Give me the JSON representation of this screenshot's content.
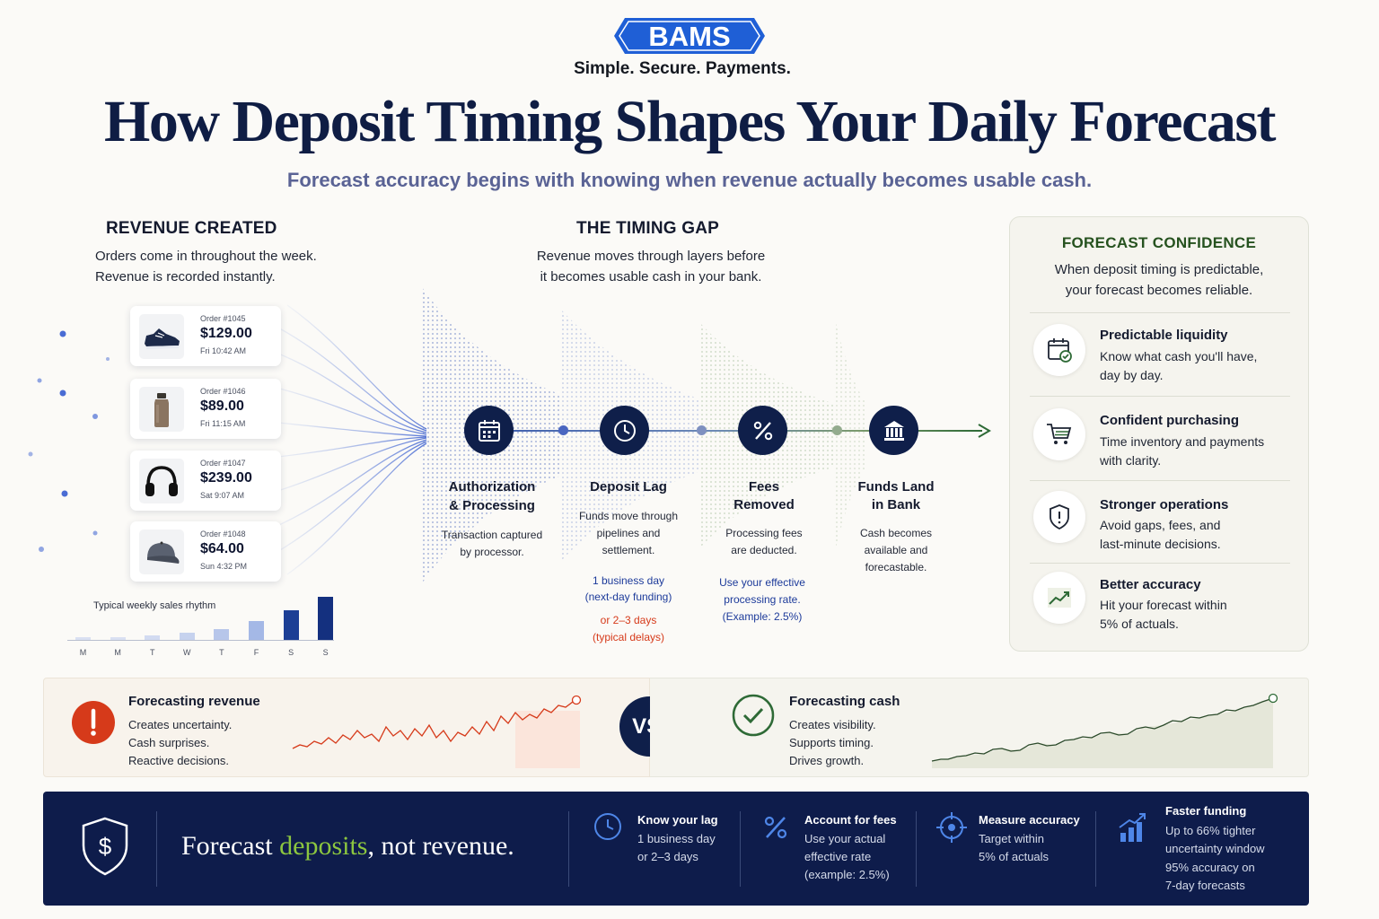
{
  "brand": {
    "logo_text": "BAMS",
    "tagline": "Simple. Secure. Payments.",
    "colors": {
      "navy": "#0f1f4a",
      "blue": "#1f5fd6",
      "green": "#26521f",
      "accent_green": "#8cc63f",
      "red": "#d63a1a"
    }
  },
  "header": {
    "title": "How Deposit Timing Shapes Your Daily Forecast",
    "subtitle": "Forecast accuracy begins with knowing when revenue actually becomes usable cash."
  },
  "revenue": {
    "heading": "REVENUE CREATED",
    "desc_1": "Orders come in throughout the week.",
    "desc_2": "Revenue is recorded instantly.",
    "orders": [
      {
        "id": "Order #1045",
        "amount": "$129.00",
        "time": "Fri 10:42 AM",
        "icon": "sneaker-icon"
      },
      {
        "id": "Order #1046",
        "amount": "$89.00",
        "time": "Fri 11:15 AM",
        "icon": "bottle-icon"
      },
      {
        "id": "Order #1047",
        "amount": "$239.00",
        "time": "Sat 9:07 AM",
        "icon": "headphones-icon"
      },
      {
        "id": "Order #1048",
        "amount": "$64.00",
        "time": "Sun 4:32 PM",
        "icon": "cap-icon"
      }
    ],
    "weekly_chart": {
      "title": "Typical weekly sales rhythm",
      "days": [
        "M",
        "M",
        "T",
        "W",
        "T",
        "F",
        "S",
        "S"
      ],
      "relative_levels": [
        0.08,
        0.09,
        0.13,
        0.18,
        0.27,
        0.44,
        0.7,
        1.0
      ]
    }
  },
  "timing": {
    "heading": "THE TIMING GAP",
    "desc_1": "Revenue moves through layers before",
    "desc_2": "it becomes usable cash in your bank.",
    "steps": [
      {
        "title_1": "Authorization",
        "title_2": "& Processing",
        "desc_1": "Transaction captured",
        "desc_2": "by processor.",
        "icon": "calendar-icon"
      },
      {
        "title_1": "Deposit Lag",
        "desc_1": "Funds move through",
        "desc_2": "pipelines and",
        "desc_3": "settlement.",
        "note_1": "1 business day",
        "note_2": "(next-day funding)",
        "warn_1": "or 2–3 days",
        "warn_2": "(typical delays)",
        "icon": "clock-icon"
      },
      {
        "title_1": "Fees",
        "title_2": "Removed",
        "desc_1": "Processing fees",
        "desc_2": "are deducted.",
        "note_1": "Use your effective",
        "note_2": "processing rate.",
        "note_3": "(Example: 2.5%)",
        "icon": "percent-icon"
      },
      {
        "title_1": "Funds Land",
        "title_2": "in Bank",
        "desc_1": "Cash becomes",
        "desc_2": "available and",
        "desc_3": "forecastable.",
        "icon": "bank-icon"
      }
    ]
  },
  "confidence": {
    "heading": "FORECAST CONFIDENCE",
    "desc_1": "When deposit timing is predictable,",
    "desc_2": "your forecast becomes reliable.",
    "items": [
      {
        "title": "Predictable liquidity",
        "text_1": "Know what cash you'll have,",
        "text_2": "day by day.",
        "icon": "calendar-check-icon"
      },
      {
        "title": "Confident purchasing",
        "text_1": "Time inventory and payments",
        "text_2": "with clarity.",
        "icon": "cart-icon"
      },
      {
        "title": "Stronger operations",
        "text_1": "Avoid gaps, fees, and",
        "text_2": "last-minute decisions.",
        "icon": "shield-alert-icon"
      },
      {
        "title": "Better accuracy",
        "text_1": "Hit your forecast within",
        "text_2": "5% of actuals.",
        "icon": "trend-up-icon"
      }
    ]
  },
  "comparison": {
    "left": {
      "title": "Forecasting revenue",
      "lines": [
        "Creates uncertainty.",
        "Cash surprises.",
        "Reactive decisions."
      ],
      "icon": "alert-icon"
    },
    "vs": "VS.",
    "right": {
      "title": "Forecasting cash",
      "lines": [
        "Creates visibility.",
        "Supports timing.",
        "Drives growth."
      ],
      "icon": "check-circle-icon"
    }
  },
  "bottom": {
    "motto_pre": "Forecast ",
    "motto_accent": "deposits",
    "motto_post": ", not revenue.",
    "tips": [
      {
        "title": "Know your lag",
        "lines": [
          "1 business day",
          "or 2–3 days"
        ],
        "icon": "clock-icon"
      },
      {
        "title": "Account for fees",
        "lines": [
          "Use your actual",
          "effective rate",
          "(example: 2.5%)"
        ],
        "icon": "percent-icon"
      },
      {
        "title": "Measure accuracy",
        "lines": [
          "Target within",
          "5% of actuals"
        ],
        "icon": "target-icon"
      },
      {
        "title": "Faster funding",
        "lines": [
          "Up to 66% tighter",
          "uncertainty window",
          "95% accuracy on",
          "7-day forecasts"
        ],
        "icon": "bar-growth-icon"
      }
    ]
  }
}
